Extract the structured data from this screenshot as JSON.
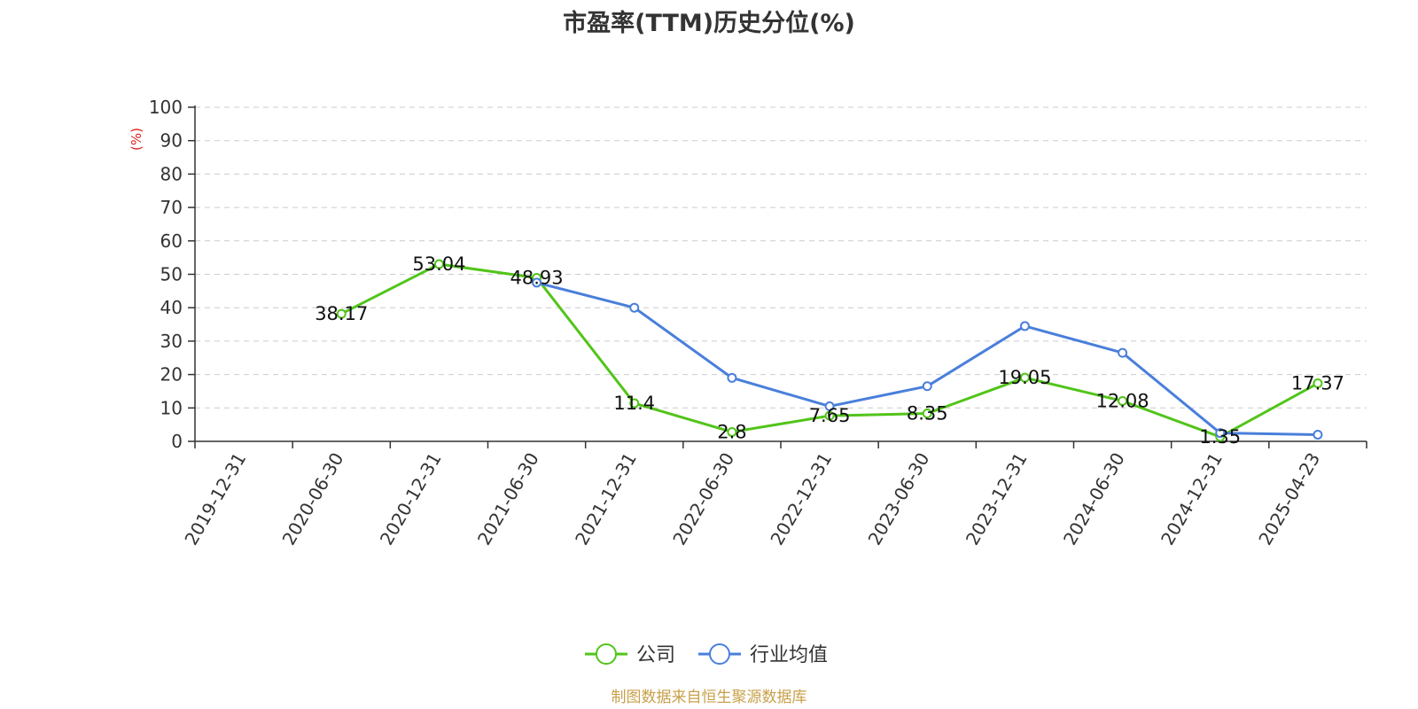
{
  "title": "市盈率(TTM)历史分位(%)",
  "source": "制图数据来自恒生聚源数据库",
  "chart_data": {
    "type": "line",
    "title": "市盈率(TTM)历史分位(%)",
    "ylabel": "(%)",
    "xlabel": "",
    "ylim": [
      0,
      100
    ],
    "yticks": [
      0,
      10,
      20,
      30,
      40,
      50,
      60,
      70,
      80,
      90,
      100
    ],
    "grid": true,
    "legend_position": "bottom-center",
    "categories": [
      "2019-12-31",
      "2020-06-30",
      "2020-12-31",
      "2021-06-30",
      "2021-12-31",
      "2022-06-30",
      "2022-12-31",
      "2023-06-30",
      "2023-12-31",
      "2024-06-30",
      "2024-12-31",
      "2025-04-23"
    ],
    "series": [
      {
        "name": "公司",
        "color": "#52c41a",
        "values": [
          null,
          38.17,
          53.04,
          48.93,
          11.4,
          2.8,
          7.65,
          8.35,
          19.05,
          12.08,
          1.35,
          17.37
        ],
        "labels": [
          "",
          "38.17",
          "53.04",
          "48.93",
          "11.4",
          "2.8",
          "7.65",
          "8.35",
          "19.05",
          "12.08",
          "1.35",
          "17.37"
        ]
      },
      {
        "name": "行业均值",
        "color": "#4a7fdb",
        "values": [
          null,
          null,
          null,
          47.5,
          40.0,
          19.0,
          10.5,
          16.5,
          34.5,
          26.5,
          2.5,
          2.0
        ]
      }
    ]
  }
}
